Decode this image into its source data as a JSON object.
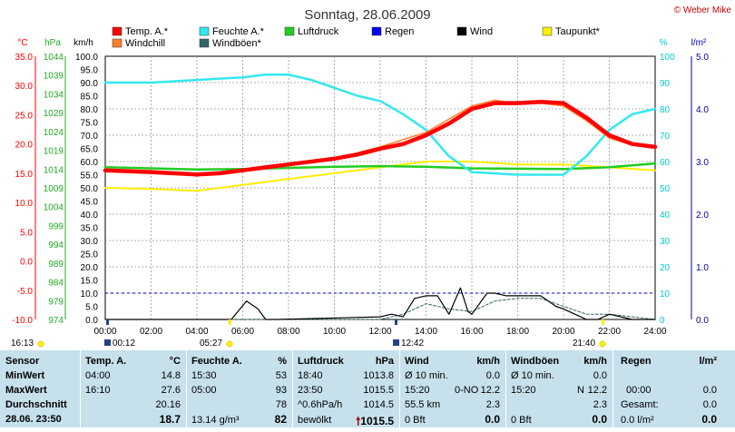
{
  "header": {
    "title": "Sonntag, 28.06.2009",
    "credit": "© Weber Mike"
  },
  "legend": [
    {
      "label": "Temp. A.*",
      "color": "#ff0000"
    },
    {
      "label": "Feuchte A.*",
      "color": "#33e8ee"
    },
    {
      "label": "Luftdruck",
      "color": "#22cc22"
    },
    {
      "label": "Regen",
      "color": "#0000ff"
    },
    {
      "label": "Wind",
      "color": "#000000"
    },
    {
      "label": "Taupunkt*",
      "color": "#ffee00"
    },
    {
      "label": "Windchill",
      "color": "#ff7f27"
    },
    {
      "label": "Windböen*",
      "color": "#336666"
    }
  ],
  "axis_units": {
    "temp": "°C",
    "pressure": "hPa",
    "wind": "km/h",
    "humidity": "%",
    "rain": "l/m²"
  },
  "axis_ticks": {
    "temp": [
      "35.0",
      "30.0",
      "25.0",
      "20.0",
      "15.0",
      "10.0",
      "5.0",
      "0.0",
      "-5.0",
      "-10.0"
    ],
    "pressure": [
      "1044",
      "1039",
      "1034",
      "1029",
      "1024",
      "1019",
      "1014",
      "1009",
      "1004",
      "999",
      "994",
      "989",
      "984",
      "979",
      "974"
    ],
    "wind": [
      "100.0",
      "95.0",
      "90.0",
      "85.0",
      "80.0",
      "75.0",
      "70.0",
      "65.0",
      "60.0",
      "55.0",
      "50.0",
      "45.0",
      "40.0",
      "35.0",
      "30.0",
      "25.0",
      "20.0",
      "15.0",
      "10.0",
      "5.0",
      "0.0"
    ],
    "humidity": [
      "100",
      "90",
      "80",
      "70",
      "60",
      "50",
      "40",
      "30",
      "20",
      "10",
      "0"
    ],
    "rain": [
      "5.0",
      "4.0",
      "3.0",
      "2.0",
      "1.0",
      "0.0"
    ],
    "time": [
      "00:00",
      "02:00",
      "04:00",
      "06:00",
      "08:00",
      "10:00",
      "12:00",
      "14:00",
      "16:00",
      "18:00",
      "20:00",
      "22:00",
      "24:00"
    ]
  },
  "markers": {
    "sunrise": "05:27",
    "sunset": "21:40",
    "left_time": "16:13",
    "moon_left": "00:12",
    "moon_mid": "12:42"
  },
  "chart_data": {
    "type": "line",
    "title": "Sonntag, 28.06.2009",
    "x_range": [
      "00:00",
      "24:00"
    ],
    "series": [
      {
        "name": "Temp. A.*",
        "axis": "temp",
        "color": "#ff0000",
        "x": [
          "00:00",
          "02:00",
          "04:00",
          "05:00",
          "06:00",
          "07:00",
          "08:00",
          "10:00",
          "11:00",
          "12:00",
          "13:00",
          "14:00",
          "15:00",
          "16:00",
          "17:00",
          "18:00",
          "19:00",
          "20:00",
          "21:00",
          "22:00",
          "23:00",
          "24:00"
        ],
        "values": [
          15.5,
          15.2,
          14.8,
          15.0,
          15.5,
          16.0,
          16.5,
          17.5,
          18.2,
          19.2,
          20.0,
          21.5,
          23.5,
          26.0,
          27.0,
          27.0,
          27.2,
          27.0,
          24.5,
          21.5,
          20.0,
          19.5
        ]
      },
      {
        "name": "Windchill",
        "axis": "temp",
        "color": "#ff7f27",
        "x": [
          "00:00",
          "04:00",
          "06:00",
          "08:00",
          "10:00",
          "12:00",
          "14:00",
          "16:00",
          "17:00",
          "18:00",
          "19:00",
          "20:00",
          "21:00",
          "22:00",
          "23:00",
          "24:00"
        ],
        "values": [
          15.5,
          14.8,
          15.5,
          16.5,
          17.5,
          19.5,
          22.0,
          26.5,
          27.5,
          26.8,
          27.0,
          26.5,
          24.0,
          21.0,
          19.8,
          19.5
        ]
      },
      {
        "name": "Feuchte A.*",
        "axis": "humidity",
        "color": "#33e8ee",
        "x": [
          "00:00",
          "02:00",
          "04:00",
          "06:00",
          "07:00",
          "08:00",
          "09:00",
          "10:00",
          "11:00",
          "12:00",
          "13:00",
          "14:00",
          "15:00",
          "16:00",
          "18:00",
          "19:00",
          "20:00",
          "21:00",
          "22:00",
          "23:00",
          "24:00"
        ],
        "values": [
          90,
          90,
          91,
          92,
          93,
          93,
          91,
          88,
          85,
          83,
          78,
          72,
          62,
          56,
          55,
          55,
          55,
          62,
          72,
          78,
          80
        ]
      },
      {
        "name": "Taupunkt*",
        "axis": "temp",
        "color": "#ffee00",
        "x": [
          "00:00",
          "02:00",
          "04:00",
          "06:00",
          "08:00",
          "10:00",
          "12:00",
          "14:00",
          "16:00",
          "18:00",
          "20:00",
          "22:00",
          "24:00"
        ],
        "values": [
          12.5,
          12.3,
          12.0,
          13.0,
          14.0,
          15.0,
          16.0,
          17.0,
          17.0,
          16.5,
          16.5,
          16.0,
          15.5
        ]
      },
      {
        "name": "Luftdruck",
        "axis": "pressure",
        "color": "#22cc22",
        "x": [
          "00:00",
          "02:00",
          "04:00",
          "06:00",
          "08:00",
          "10:00",
          "12:00",
          "14:00",
          "16:00",
          "18:00",
          "20:00",
          "22:00",
          "24:00"
        ],
        "values": [
          1014.5,
          1014.2,
          1013.9,
          1014.0,
          1014.3,
          1014.6,
          1014.8,
          1014.6,
          1014.2,
          1014.1,
          1014.0,
          1014.5,
          1015.5
        ]
      },
      {
        "name": "Wind",
        "axis": "wind",
        "color": "#000000",
        "x": [
          "00:00",
          "05:30",
          "06:10",
          "06:40",
          "07:00",
          "07:30",
          "12:00",
          "12:30",
          "13:00",
          "13:30",
          "14:00",
          "14:30",
          "15:00",
          "15:30",
          "15:50",
          "16:00",
          "16:40",
          "17:00",
          "17:30",
          "18:00",
          "19:00",
          "19:40",
          "20:00",
          "21:00",
          "21:30",
          "22:00",
          "23:00",
          "24:00"
        ],
        "values": [
          0,
          0,
          7,
          4,
          0,
          0,
          1,
          2,
          1,
          8,
          9,
          9,
          2,
          12,
          3,
          2,
          10,
          10,
          9,
          9,
          9,
          5,
          4,
          0,
          0,
          2,
          0,
          0
        ]
      },
      {
        "name": "Windböen*",
        "axis": "wind",
        "color": "#336666",
        "x": [
          "00:00",
          "12:00",
          "13:00",
          "14:00",
          "15:00",
          "16:00",
          "17:00",
          "18:00",
          "19:00",
          "20:00",
          "21:00",
          "22:00",
          "23:00",
          "24:00"
        ],
        "values": [
          0,
          0,
          2,
          6,
          4,
          3,
          7,
          8,
          8,
          5,
          2,
          2,
          1,
          0
        ]
      }
    ]
  },
  "stats": {
    "row_labels": [
      "Sensor",
      "MinWert",
      "MaxWert",
      "Durchschnitt",
      "28.06. 23:50"
    ],
    "temp": {
      "header": "Temp. A.",
      "unit": "°C",
      "min_time": "04:00",
      "min": "14.8",
      "max_time": "16:10",
      "max": "27.6",
      "avg": "20.16",
      "current": "18.7"
    },
    "humidity": {
      "header": "Feuchte A.",
      "unit": "%",
      "min_time": "15:30",
      "min": "53",
      "max_time": "05:00",
      "max": "93",
      "avg": "78",
      "current_extra": "13.14 g/m³",
      "current": "82"
    },
    "pressure": {
      "header": "Luftdruck",
      "unit": "hPa",
      "min_time": "18:40",
      "min": "1013.8",
      "max_time": "23:50",
      "max": "1015.5",
      "trend": "^0.6hPa/h",
      "avg": "1014.5",
      "weather": "bewölkt",
      "current": "1015.5"
    },
    "wind": {
      "header": "Wind",
      "unit": "km/h",
      "r1": "Ø 10 min.",
      "r1v": "0.0",
      "r2t": "15:20",
      "r2d": "0-NO",
      "r2v": "12.2",
      "r3": "55.5 km",
      "r3v": "2.3",
      "r4": "0 Bft",
      "r4v": "0.0"
    },
    "gusts": {
      "header": "Windböen",
      "unit": "km/h",
      "r1": "Ø 10 min.",
      "r1v": "0.0",
      "r2t": "15:20",
      "r2d": "N",
      "r2v": "12.2",
      "r3v": "2.3",
      "r4": "0 Bft",
      "r4v": "0.0"
    },
    "rain": {
      "header": "Regen",
      "unit": "l/m²",
      "r2t": "00:00",
      "r2v": "0.0",
      "r3": "Gesamt:",
      "r3v": "0.0",
      "r4": "0.0 l/m²",
      "r4v": "0.0"
    }
  }
}
